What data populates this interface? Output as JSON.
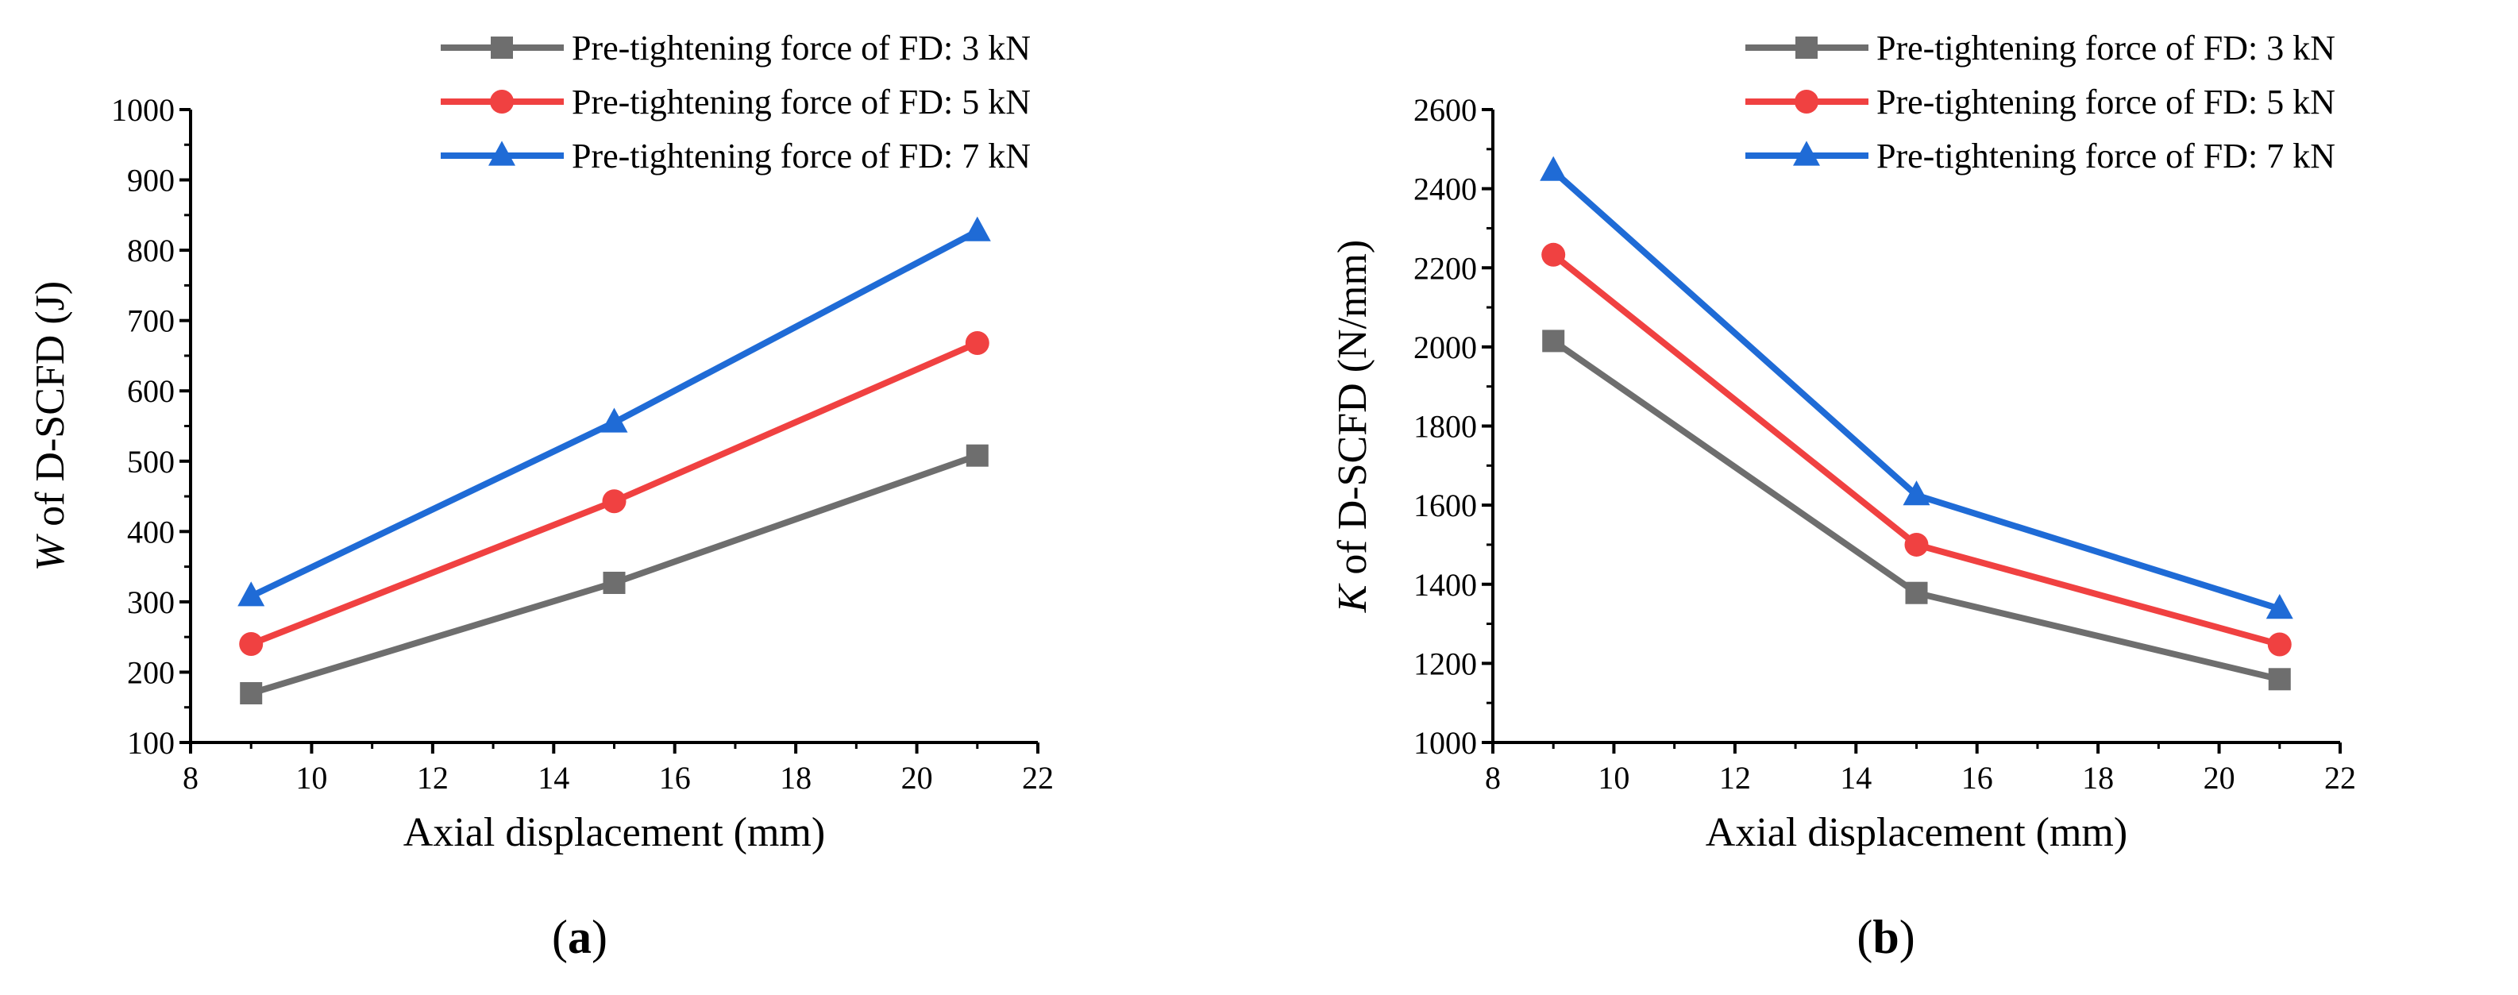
{
  "chart_data": [
    {
      "id": "a",
      "type": "line",
      "panel_label": "a",
      "xlabel": "Axial displacement (mm)",
      "ylabel_var": "W",
      "ylabel_rest": " of D-SCFD (J)",
      "xlim": [
        8,
        22
      ],
      "ylim": [
        100,
        1000
      ],
      "xticks": [
        8,
        10,
        12,
        14,
        16,
        18,
        20,
        22
      ],
      "yticks": [
        100,
        200,
        300,
        400,
        500,
        600,
        700,
        800,
        900,
        1000
      ],
      "x": [
        9,
        15,
        21
      ],
      "legend_position": "top-right",
      "series": [
        {
          "name": "Pre-tightening force of FD: 3 kN",
          "color": "#6e6e6e",
          "marker": "square",
          "values": [
            170,
            327,
            508
          ]
        },
        {
          "name": "Pre-tightening force of FD: 5 kN",
          "color": "#f04141",
          "marker": "circle",
          "values": [
            240,
            443,
            668
          ]
        },
        {
          "name": "Pre-tightening force of FD: 7 kN",
          "color": "#1f6bd6",
          "marker": "triangle",
          "values": [
            308,
            555,
            827
          ]
        }
      ]
    },
    {
      "id": "b",
      "type": "line",
      "panel_label": "b",
      "xlabel": "Axial displacement (mm)",
      "ylabel_var": "K",
      "ylabel_rest": " of D-SCFD (N/mm)",
      "xlim": [
        8,
        22
      ],
      "ylim": [
        1000,
        2600
      ],
      "xticks": [
        8,
        10,
        12,
        14,
        16,
        18,
        20,
        22
      ],
      "yticks": [
        1000,
        1200,
        1400,
        1600,
        1800,
        2000,
        2200,
        2400,
        2600
      ],
      "x": [
        9,
        15,
        21
      ],
      "legend_position": "top-right",
      "series": [
        {
          "name": "Pre-tightening force of FD: 3 kN",
          "color": "#6e6e6e",
          "marker": "square",
          "values": [
            2015,
            1378,
            1160
          ]
        },
        {
          "name": "Pre-tightening force of FD: 5 kN",
          "color": "#f04141",
          "marker": "circle",
          "values": [
            2233,
            1500,
            1248
          ]
        },
        {
          "name": "Pre-tightening force of FD: 7 kN",
          "color": "#1f6bd6",
          "marker": "triangle",
          "values": [
            2445,
            1625,
            1338
          ]
        }
      ]
    }
  ]
}
